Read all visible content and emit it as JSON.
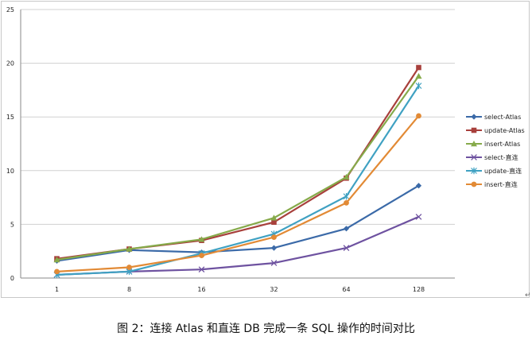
{
  "chart_data": {
    "type": "line",
    "categories": [
      "1",
      "8",
      "16",
      "32",
      "64",
      "128"
    ],
    "yticks": [
      "0",
      "5",
      "10",
      "15",
      "20",
      "25"
    ],
    "ylim": [
      0,
      25
    ],
    "grid": "horizontal",
    "legend": "right",
    "series": [
      {
        "name": "select-Atlas",
        "color": "#3b6aa8",
        "marker": "diamond",
        "values": [
          1.6,
          2.6,
          2.4,
          2.8,
          4.6,
          8.6
        ]
      },
      {
        "name": "update-Atlas",
        "color": "#a8403c",
        "marker": "square",
        "values": [
          1.8,
          2.7,
          3.5,
          5.2,
          9.3,
          19.6
        ]
      },
      {
        "name": "insert-Atlas",
        "color": "#86aa4a",
        "marker": "triangle",
        "values": [
          1.7,
          2.7,
          3.6,
          5.6,
          9.4,
          18.8
        ]
      },
      {
        "name": "select-直连",
        "color": "#6e52a0",
        "marker": "x",
        "values": [
          0.3,
          0.6,
          0.8,
          1.4,
          2.8,
          5.7
        ]
      },
      {
        "name": "update-直连",
        "color": "#3fa1c2",
        "marker": "star",
        "values": [
          0.3,
          0.6,
          2.3,
          4.1,
          7.6,
          17.9
        ]
      },
      {
        "name": "insert-直连",
        "color": "#e28a35",
        "marker": "circle",
        "values": [
          0.6,
          1.0,
          2.1,
          3.8,
          7.0,
          15.1
        ]
      }
    ]
  },
  "caption": "图 2：连接 Atlas 和直连 DB 完成一条 SQL 操作的时间对比",
  "corner_mark": "↵"
}
